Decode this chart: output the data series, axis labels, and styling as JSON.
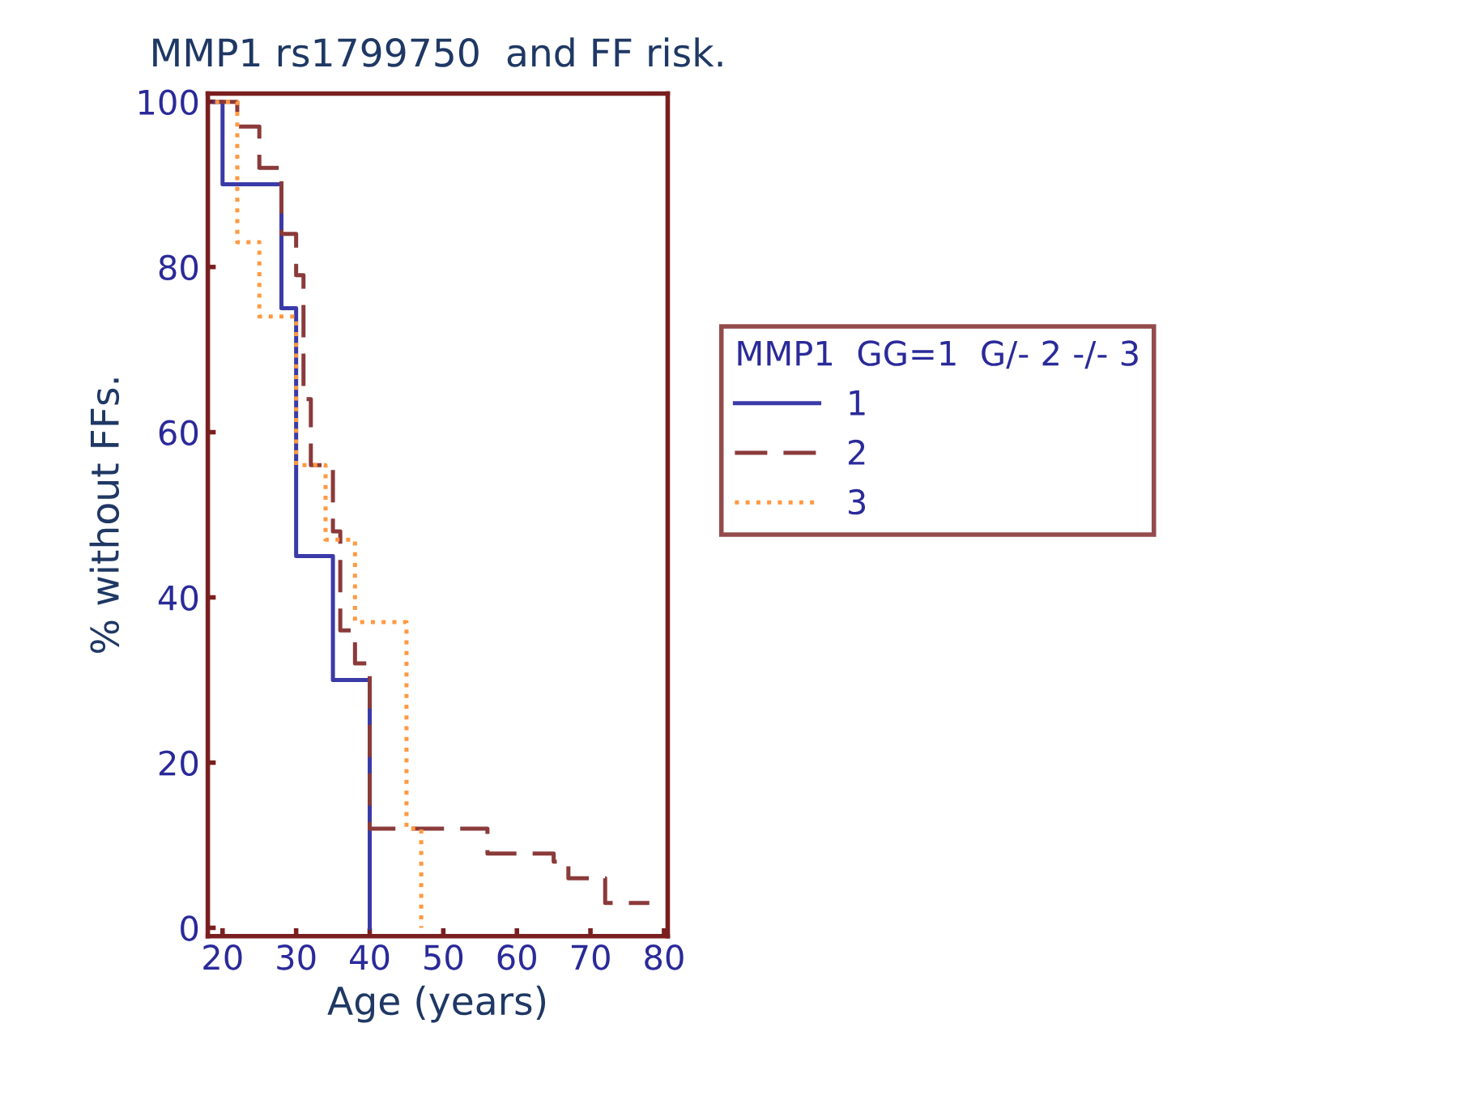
{
  "chart_data": {
    "type": "step",
    "title": "MMP1 rs1799750  and FF risk.",
    "xlabel": "Age (years)",
    "ylabel": "% without FFs.",
    "legend_title": "MMP1  GG=1  G/- 2 -/- 3",
    "series": [
      {
        "name": "1",
        "color": "#3a3aa8",
        "line_style": "solid",
        "x": [
          19,
          20,
          28,
          30,
          35,
          40,
          40
        ],
        "values": [
          100,
          90,
          75,
          45,
          30,
          0,
          0
        ]
      },
      {
        "name": "2",
        "color": "#8b3a3a",
        "line_style": "dashed",
        "x": [
          19,
          22,
          25,
          28,
          30,
          31,
          32,
          35,
          36,
          38,
          40,
          56,
          65,
          67,
          72,
          78
        ],
        "values": [
          100,
          97,
          92,
          84,
          79,
          64,
          56,
          48,
          36,
          32,
          12,
          9,
          8,
          6,
          3,
          3
        ]
      },
      {
        "name": "3",
        "color": "#ff9940",
        "line_style": "dotted",
        "x": [
          19,
          22,
          25,
          30,
          34,
          38,
          45,
          47,
          47
        ],
        "values": [
          100,
          83,
          74,
          56,
          47,
          37,
          12,
          0,
          0
        ]
      }
    ],
    "xlim": [
      18,
      80.5
    ],
    "ylim": [
      -1,
      101
    ],
    "xticks": [
      20,
      30,
      40,
      50,
      60,
      70,
      80
    ],
    "yticks": [
      0,
      20,
      40,
      60,
      80,
      100
    ],
    "grid": false,
    "legend": "right"
  }
}
